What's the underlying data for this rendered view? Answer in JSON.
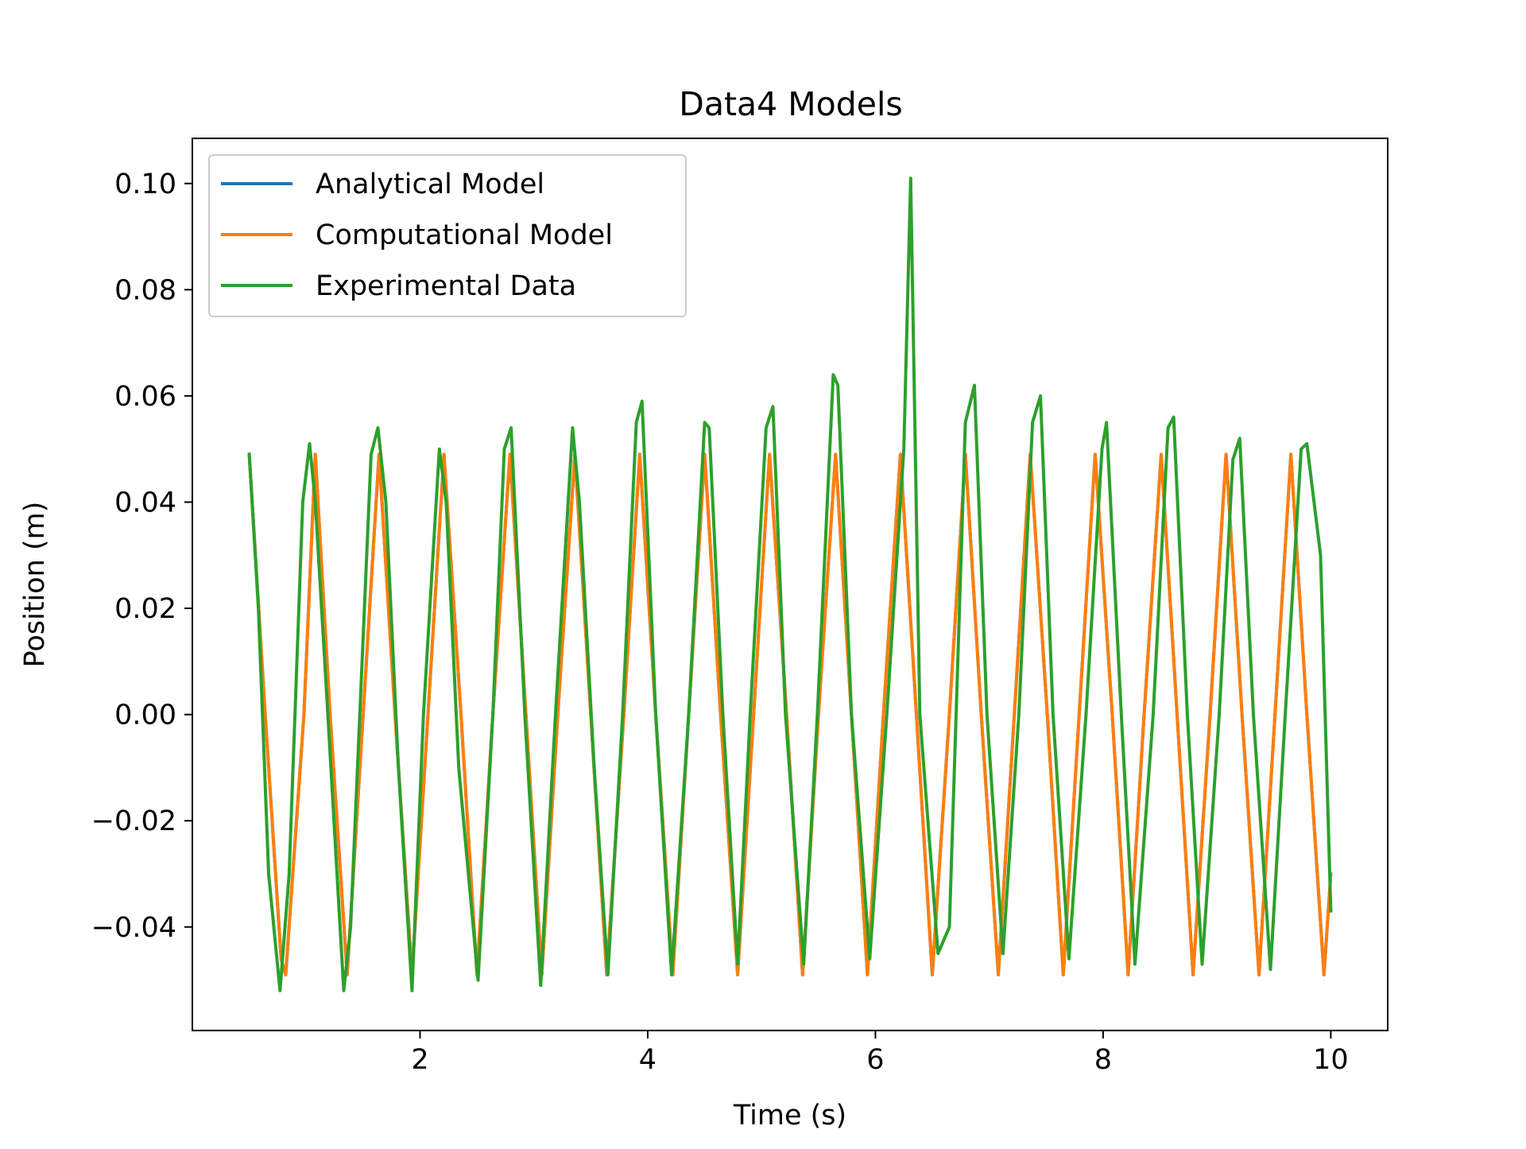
{
  "chart_data": {
    "type": "line",
    "title": "Data4 Models",
    "xlabel": "Time (s)",
    "ylabel": "Position (m)",
    "xlim": [
      0.0,
      10.5
    ],
    "ylim": [
      -0.0595,
      0.1085
    ],
    "grid": false,
    "legend_position": "top-left",
    "x_ticks": [
      {
        "value": 2,
        "label": "2"
      },
      {
        "value": 4,
        "label": "4"
      },
      {
        "value": 6,
        "label": "6"
      },
      {
        "value": 8,
        "label": "8"
      },
      {
        "value": 10,
        "label": "10"
      }
    ],
    "y_ticks": [
      {
        "value": 0.1,
        "label": "0.10"
      },
      {
        "value": 0.08,
        "label": "0.08"
      },
      {
        "value": 0.06,
        "label": "0.06"
      },
      {
        "value": 0.04,
        "label": "0.04"
      },
      {
        "value": 0.02,
        "label": "0.02"
      },
      {
        "value": 0.0,
        "label": "0.00"
      },
      {
        "value": -0.02,
        "label": "−0.02"
      },
      {
        "value": -0.04,
        "label": "−0.04"
      }
    ],
    "series": [
      {
        "name": "Analytical Model",
        "color": "#1f77b4",
        "x": [
          0.5,
          0.64,
          0.78,
          0.82,
          0.98,
          1.08,
          1.21,
          1.36,
          1.5,
          1.64,
          1.78,
          1.93,
          2.07,
          2.21,
          2.36,
          2.5,
          2.64,
          2.79,
          2.93,
          3.07,
          3.21,
          3.36,
          3.5,
          3.64,
          3.79,
          3.93,
          4.07,
          4.22,
          4.36,
          4.5,
          4.64,
          4.79,
          4.93,
          5.07,
          5.22,
          5.36,
          5.5,
          5.65,
          5.79,
          5.93,
          6.07,
          6.22,
          6.36,
          6.5,
          6.65,
          6.79,
          6.93,
          7.08,
          7.22,
          7.36,
          7.51,
          7.65,
          7.79,
          7.93,
          8.08,
          8.22,
          8.36,
          8.51,
          8.65,
          8.79,
          8.94,
          9.08,
          9.22,
          9.37,
          9.51,
          9.65,
          9.79,
          9.94,
          10.0
        ],
        "y": [
          0.049,
          0.0,
          -0.046,
          -0.049,
          0.0,
          0.049,
          0.0,
          -0.049,
          0.0,
          0.049,
          0.0,
          -0.049,
          0.0,
          0.049,
          0.0,
          -0.049,
          0.0,
          0.049,
          0.0,
          -0.049,
          0.0,
          0.049,
          0.0,
          -0.049,
          0.0,
          0.049,
          0.0,
          -0.049,
          0.0,
          0.049,
          0.0,
          -0.049,
          0.0,
          0.049,
          0.0,
          -0.049,
          0.0,
          0.049,
          0.0,
          -0.049,
          0.0,
          0.049,
          0.0,
          -0.049,
          0.0,
          0.049,
          0.0,
          -0.049,
          0.0,
          0.049,
          0.0,
          -0.049,
          0.0,
          0.049,
          0.0,
          -0.049,
          0.0,
          0.049,
          0.0,
          -0.049,
          0.0,
          0.049,
          0.0,
          -0.049,
          0.0,
          0.049,
          0.0,
          -0.049,
          -0.03
        ]
      },
      {
        "name": "Computational Model",
        "color": "#ff7f0e",
        "x": [
          0.5,
          0.64,
          0.78,
          0.82,
          0.98,
          1.08,
          1.21,
          1.36,
          1.5,
          1.64,
          1.78,
          1.93,
          2.07,
          2.21,
          2.36,
          2.5,
          2.64,
          2.79,
          2.93,
          3.07,
          3.21,
          3.36,
          3.5,
          3.64,
          3.79,
          3.93,
          4.07,
          4.22,
          4.36,
          4.5,
          4.64,
          4.79,
          4.93,
          5.07,
          5.22,
          5.36,
          5.5,
          5.65,
          5.79,
          5.93,
          6.07,
          6.22,
          6.36,
          6.5,
          6.65,
          6.79,
          6.93,
          7.08,
          7.22,
          7.36,
          7.51,
          7.65,
          7.79,
          7.93,
          8.08,
          8.22,
          8.36,
          8.51,
          8.65,
          8.79,
          8.94,
          9.08,
          9.22,
          9.37,
          9.51,
          9.65,
          9.79,
          9.94,
          10.0
        ],
        "y": [
          0.049,
          0.0,
          -0.046,
          -0.049,
          0.0,
          0.049,
          0.0,
          -0.049,
          0.0,
          0.049,
          0.0,
          -0.049,
          0.0,
          0.049,
          0.0,
          -0.049,
          0.0,
          0.049,
          0.0,
          -0.049,
          0.0,
          0.049,
          0.0,
          -0.049,
          0.0,
          0.049,
          0.0,
          -0.049,
          0.0,
          0.049,
          0.0,
          -0.049,
          0.0,
          0.049,
          0.0,
          -0.049,
          0.0,
          0.049,
          0.0,
          -0.049,
          0.0,
          0.049,
          0.0,
          -0.049,
          0.0,
          0.049,
          0.0,
          -0.049,
          0.0,
          0.049,
          0.0,
          -0.049,
          0.0,
          0.049,
          0.0,
          -0.049,
          0.0,
          0.049,
          0.0,
          -0.049,
          0.0,
          0.049,
          0.0,
          -0.049,
          0.0,
          0.049,
          0.0,
          -0.049,
          -0.03
        ]
      },
      {
        "name": "Experimental Data",
        "color": "#2ca02c",
        "x": [
          0.5,
          0.58,
          0.67,
          0.77,
          0.85,
          0.97,
          1.03,
          1.08,
          1.19,
          1.33,
          1.39,
          1.57,
          1.63,
          1.7,
          1.81,
          1.93,
          2.03,
          2.17,
          2.23,
          2.34,
          2.51,
          2.64,
          2.74,
          2.8,
          2.92,
          3.06,
          3.19,
          3.34,
          3.4,
          3.53,
          3.65,
          3.78,
          3.9,
          3.95,
          4.07,
          4.21,
          4.36,
          4.5,
          4.54,
          4.66,
          4.79,
          4.9,
          5.04,
          5.1,
          5.21,
          5.37,
          5.49,
          5.63,
          5.67,
          5.79,
          5.95,
          6.1,
          6.25,
          6.31,
          6.39,
          6.55,
          6.65,
          6.79,
          6.87,
          6.98,
          7.12,
          7.26,
          7.38,
          7.45,
          7.56,
          7.7,
          7.85,
          7.99,
          8.03,
          8.16,
          8.28,
          8.44,
          8.57,
          8.62,
          8.74,
          8.87,
          9.02,
          9.14,
          9.2,
          9.32,
          9.47,
          9.6,
          9.74,
          9.79,
          9.91,
          10.0
        ],
        "y": [
          0.049,
          0.02,
          -0.03,
          -0.052,
          -0.03,
          0.04,
          0.051,
          0.04,
          0.0,
          -0.052,
          -0.04,
          0.049,
          0.054,
          0.04,
          -0.01,
          -0.052,
          0.0,
          0.05,
          0.04,
          -0.01,
          -0.05,
          0.0,
          0.05,
          0.054,
          0.0,
          -0.051,
          0.0,
          0.054,
          0.04,
          -0.01,
          -0.049,
          0.0,
          0.055,
          0.059,
          0.0,
          -0.049,
          0.0,
          0.055,
          0.054,
          0.0,
          -0.047,
          0.0,
          0.054,
          0.058,
          0.0,
          -0.047,
          0.0,
          0.064,
          0.062,
          0.0,
          -0.046,
          0.0,
          0.05,
          0.101,
          0.0,
          -0.045,
          -0.04,
          0.055,
          0.062,
          0.0,
          -0.045,
          0.0,
          0.055,
          0.06,
          0.0,
          -0.046,
          0.0,
          0.05,
          0.055,
          0.0,
          -0.047,
          0.0,
          0.054,
          0.056,
          0.0,
          -0.047,
          0.0,
          0.048,
          0.052,
          0.0,
          -0.048,
          0.0,
          0.05,
          0.051,
          0.03,
          -0.037
        ]
      }
    ]
  }
}
